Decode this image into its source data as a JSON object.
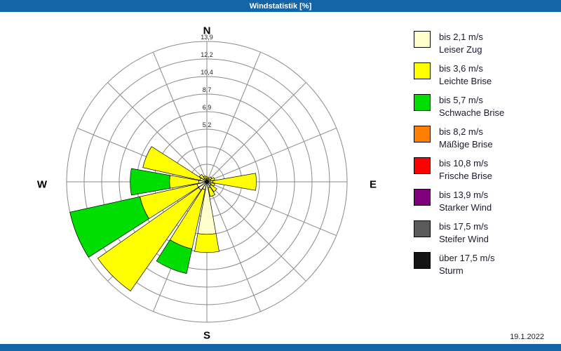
{
  "title_bar": {
    "title": "Windstatistik [%]"
  },
  "footer": {
    "date": "19.1.2022"
  },
  "colors": {
    "accent_blue": "#1464a8",
    "grid": "#8a8a8a"
  },
  "chart_data": {
    "type": "wind-rose",
    "units": "%",
    "rmax": 13.9,
    "rings": 8,
    "ring_labels": [
      null,
      null,
      "5,2",
      "6,9",
      "8,7",
      "10,4",
      "12,2",
      "13,9"
    ],
    "directions": [
      "N",
      "NNE",
      "NE",
      "ENE",
      "E",
      "ESE",
      "SE",
      "SSE",
      "S",
      "SSW",
      "SW",
      "WSW",
      "W",
      "WNW",
      "NW",
      "NNW"
    ],
    "compass": {
      "north": "N",
      "east": "E",
      "south": "S",
      "west": "W"
    },
    "series": [
      {
        "name": "bis 2,1 m/s",
        "color": "#ffffcc",
        "values": [
          0.3,
          0.2,
          0.3,
          0.4,
          0.6,
          0.4,
          0.5,
          0.6,
          5.2,
          0.8,
          1.0,
          1.0,
          0.8,
          0.7,
          0.4,
          0.3
        ]
      },
      {
        "name": "bis 3,6 m/s",
        "color": "#ffff00",
        "values": [
          0.2,
          0.2,
          0.3,
          0.4,
          4.3,
          0.4,
          0.7,
          0.9,
          1.8,
          6.0,
          12.2,
          5.8,
          2.9,
          5.8,
          0.5,
          0.3
        ]
      },
      {
        "name": "bis 5,7 m/s",
        "color": "#00dd00",
        "values": [
          0,
          0,
          0,
          0,
          0,
          0,
          0,
          0,
          0,
          2.5,
          0,
          7.1,
          3.9,
          0,
          0,
          0
        ]
      },
      {
        "name": "bis 8,2 m/s",
        "color": "#ff8000",
        "values": [
          0,
          0,
          0,
          0,
          0,
          0,
          0,
          0,
          0,
          0,
          0,
          0,
          0,
          0,
          0,
          0
        ]
      },
      {
        "name": "bis 10,8 m/s",
        "color": "#ff0000",
        "values": [
          0,
          0,
          0,
          0,
          0,
          0,
          0,
          0,
          0,
          0,
          0,
          0,
          0,
          0,
          0,
          0
        ]
      },
      {
        "name": "bis 13,9 m/s",
        "color": "#800080",
        "values": [
          0,
          0,
          0,
          0,
          0,
          0,
          0,
          0,
          0,
          0,
          0,
          0,
          0,
          0,
          0,
          0
        ]
      },
      {
        "name": "bis 17,5 m/s",
        "color": "#5a5a5a",
        "values": [
          0,
          0,
          0,
          0,
          0,
          0,
          0,
          0,
          0,
          0,
          0,
          0,
          0,
          0,
          0,
          0
        ]
      },
      {
        "name": "über 17,5 m/s",
        "color": "#141414",
        "values": [
          0,
          0,
          0,
          0,
          0,
          0,
          0,
          0,
          0,
          0,
          0,
          0,
          0,
          0,
          0,
          0
        ]
      }
    ]
  },
  "legend": {
    "items": [
      {
        "color": "#ffffcc",
        "line1": "bis 2,1 m/s",
        "line2": "Leiser Zug"
      },
      {
        "color": "#ffff00",
        "line1": "bis 3,6 m/s",
        "line2": "Leichte Brise"
      },
      {
        "color": "#00dd00",
        "line1": "bis 5,7 m/s",
        "line2": "Schwache Brise"
      },
      {
        "color": "#ff8000",
        "line1": "bis 8,2 m/s",
        "line2": "Mäßige Brise"
      },
      {
        "color": "#ff0000",
        "line1": "bis 10,8 m/s",
        "line2": "Frische Brise"
      },
      {
        "color": "#800080",
        "line1": "bis 13,9 m/s",
        "line2": "Starker Wind"
      },
      {
        "color": "#5a5a5a",
        "line1": "bis 17,5 m/s",
        "line2": "Steifer Wind"
      },
      {
        "color": "#141414",
        "line1": "über 17,5 m/s",
        "line2": "Sturm"
      }
    ]
  }
}
